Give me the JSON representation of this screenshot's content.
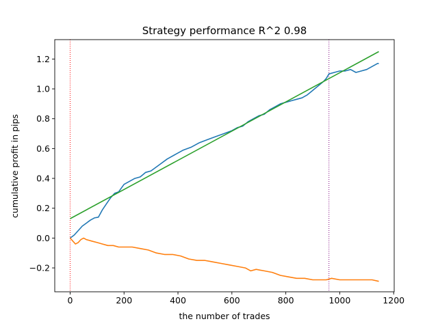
{
  "chart_data": {
    "type": "line",
    "title": "Strategy performance R^2 0.98",
    "xlabel": "the number of trades",
    "ylabel": "cumulative profit in pips",
    "xlim": [
      -57,
      1202
    ],
    "ylim": [
      -0.36,
      1.33
    ],
    "xticks": [
      0,
      200,
      400,
      600,
      800,
      1000,
      1200
    ],
    "yticks": [
      -0.2,
      0.0,
      0.2,
      0.4,
      0.6,
      0.8,
      1.0,
      1.2
    ],
    "grid": false,
    "vlines": [
      {
        "x": 0,
        "color": "#ff0000",
        "style": "dotted"
      },
      {
        "x": 960,
        "color": "#800080",
        "style": "dotted"
      }
    ],
    "series": [
      {
        "color": "#1f77b4",
        "x": [
          0,
          15,
          30,
          45,
          60,
          75,
          90,
          105,
          120,
          135,
          150,
          165,
          180,
          200,
          220,
          240,
          260,
          280,
          300,
          330,
          360,
          390,
          420,
          450,
          480,
          510,
          540,
          570,
          600,
          620,
          640,
          660,
          680,
          700,
          720,
          740,
          760,
          780,
          800,
          820,
          840,
          860,
          880,
          900,
          920,
          940,
          950,
          960,
          980,
          1000,
          1020,
          1040,
          1060,
          1080,
          1100,
          1120,
          1140,
          1145
        ],
        "y": [
          0.0,
          0.02,
          0.05,
          0.08,
          0.1,
          0.12,
          0.135,
          0.14,
          0.19,
          0.23,
          0.27,
          0.3,
          0.31,
          0.36,
          0.38,
          0.4,
          0.41,
          0.44,
          0.45,
          0.49,
          0.53,
          0.56,
          0.59,
          0.61,
          0.64,
          0.66,
          0.68,
          0.7,
          0.72,
          0.74,
          0.75,
          0.78,
          0.8,
          0.82,
          0.83,
          0.86,
          0.88,
          0.9,
          0.91,
          0.92,
          0.93,
          0.94,
          0.96,
          0.99,
          1.02,
          1.05,
          1.07,
          1.1,
          1.11,
          1.12,
          1.12,
          1.13,
          1.11,
          1.12,
          1.13,
          1.15,
          1.17,
          1.17
        ]
      },
      {
        "color": "#ff7f0e",
        "x": [
          0,
          10,
          20,
          30,
          40,
          50,
          60,
          80,
          100,
          120,
          140,
          160,
          180,
          200,
          230,
          260,
          290,
          320,
          350,
          380,
          410,
          440,
          470,
          500,
          530,
          560,
          590,
          620,
          650,
          670,
          690,
          720,
          750,
          780,
          810,
          840,
          870,
          900,
          930,
          950,
          970,
          1000,
          1030,
          1060,
          1090,
          1120,
          1145
        ],
        "y": [
          0.0,
          -0.02,
          -0.04,
          -0.03,
          -0.01,
          0.0,
          -0.01,
          -0.02,
          -0.03,
          -0.04,
          -0.05,
          -0.05,
          -0.06,
          -0.06,
          -0.06,
          -0.07,
          -0.08,
          -0.1,
          -0.11,
          -0.11,
          -0.12,
          -0.14,
          -0.15,
          -0.15,
          -0.16,
          -0.17,
          -0.18,
          -0.19,
          -0.2,
          -0.22,
          -0.21,
          -0.22,
          -0.23,
          -0.25,
          -0.26,
          -0.27,
          -0.27,
          -0.28,
          -0.28,
          -0.28,
          -0.27,
          -0.28,
          -0.28,
          -0.28,
          -0.28,
          -0.28,
          -0.29
        ]
      },
      {
        "color": "#2ca02c",
        "x": [
          0,
          1145
        ],
        "y": [
          0.13,
          1.25
        ]
      }
    ]
  }
}
